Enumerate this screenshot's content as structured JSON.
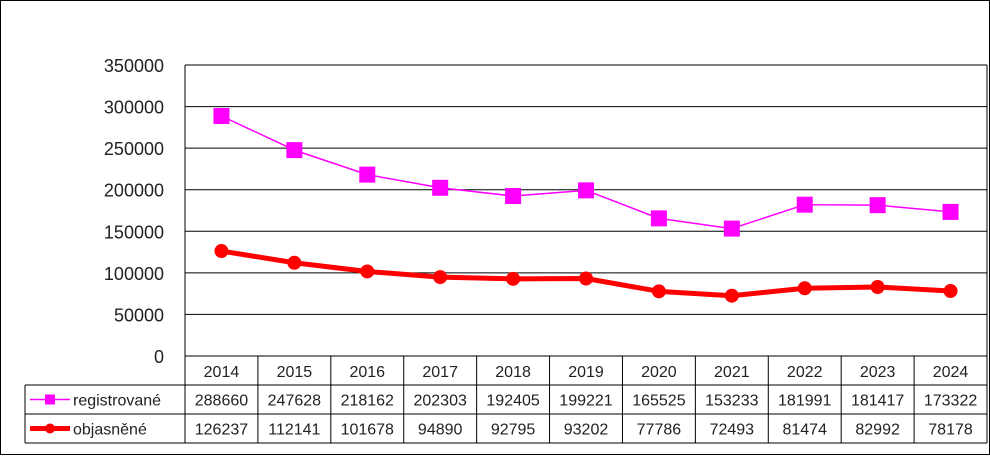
{
  "chart_data": {
    "type": "line",
    "title": "",
    "xlabel": "",
    "ylabel": "",
    "ylim": [
      0,
      350000
    ],
    "yticks": [
      "0",
      "50000",
      "100000",
      "150000",
      "200000",
      "250000",
      "300000",
      "350000"
    ],
    "grid": true,
    "legend": "data-table-left",
    "categories": [
      "2014",
      "2015",
      "2016",
      "2017",
      "2018",
      "2019",
      "2020",
      "2021",
      "2022",
      "2023",
      "2024"
    ],
    "series": [
      {
        "name": "registrované",
        "color": "#ff00ff",
        "marker": "square",
        "values": [
          288660,
          247628,
          218162,
          202303,
          192405,
          199221,
          165525,
          153233,
          181991,
          181417,
          173322
        ]
      },
      {
        "name": "objasněné",
        "color": "#ff0000",
        "marker": "circle",
        "values": [
          126237,
          112141,
          101678,
          94890,
          92795,
          93202,
          77786,
          72493,
          81474,
          82992,
          78178
        ]
      }
    ]
  }
}
